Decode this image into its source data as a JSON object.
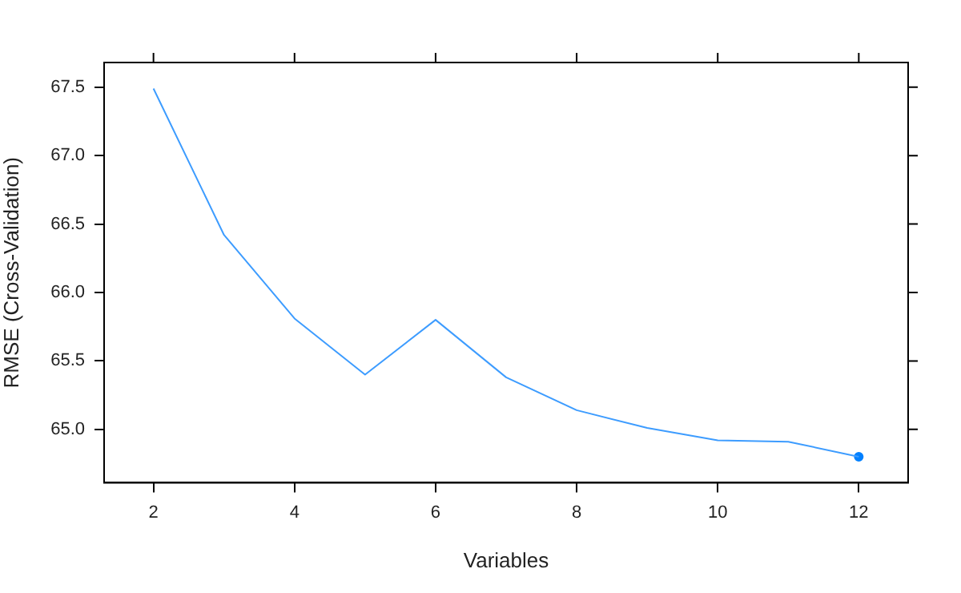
{
  "chart_data": {
    "type": "line",
    "xlabel": "Variables",
    "ylabel": "RMSE (Cross-Validation)",
    "xlim": [
      1.3,
      12.7
    ],
    "xticks": [
      2,
      4,
      6,
      8,
      10,
      12
    ],
    "ylim": [
      64.61,
      67.68
    ],
    "yticks": [
      {
        "value": 65,
        "label": "65.0"
      },
      65.5,
      {
        "value": 66,
        "label": "66.0"
      },
      66.5,
      {
        "value": 67,
        "label": "67.0"
      },
      67.5
    ],
    "grid": false,
    "legend": false,
    "marker": "none",
    "line_style": "solid",
    "series": [
      {
        "color": "#3d9cff",
        "x": [
          2,
          3,
          4,
          5,
          6,
          7,
          8,
          9,
          10,
          11,
          12
        ],
        "values": [
          67.49,
          66.42,
          65.81,
          65.4,
          65.8,
          65.38,
          65.14,
          65.01,
          64.92,
          64.91,
          64.8
        ]
      },
      {
        "type": "scatter",
        "marker": "circle",
        "color": "#0080ff",
        "x": [
          12
        ],
        "values": [
          64.8
        ]
      }
    ]
  }
}
